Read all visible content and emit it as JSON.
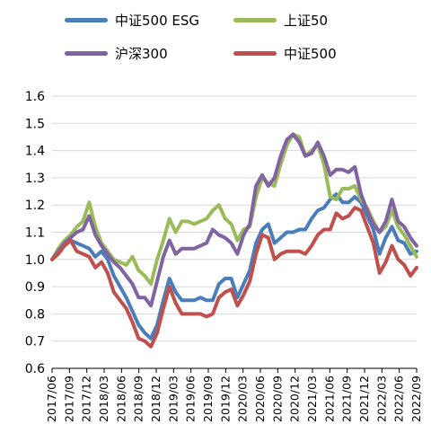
{
  "chart_data": {
    "type": "line",
    "title": "",
    "xlabel": "",
    "ylabel": "",
    "ylim": [
      0.6,
      1.6
    ],
    "yticks": [
      "0.6",
      "0.7",
      "0.8",
      "0.9",
      "1.0",
      "1.1",
      "1.2",
      "1.3",
      "1.4",
      "1.5",
      "1.6"
    ],
    "xticks": [
      "2017/06",
      "2017/09",
      "2017/12",
      "2018/03",
      "2018/06",
      "2018/09",
      "2018/12",
      "2019/03",
      "2019/06",
      "2019/09",
      "2019/12",
      "2020/03",
      "2020/06",
      "2020/09",
      "2020/12",
      "2021/03",
      "2021/06",
      "2021/09",
      "2021/12",
      "2022/03",
      "2022/06",
      "2022/09"
    ],
    "grid": "horizontal",
    "legend_position": "top",
    "series": [
      {
        "name": "中证500 ESG",
        "color": "#4a7ebb",
        "values": [
          1.0,
          1.03,
          1.06,
          1.07,
          1.06,
          1.05,
          1.04,
          1.01,
          1.03,
          1.0,
          0.94,
          0.9,
          0.86,
          0.81,
          0.76,
          0.73,
          0.71,
          0.76,
          0.85,
          0.93,
          0.88,
          0.85,
          0.85,
          0.85,
          0.86,
          0.85,
          0.85,
          0.91,
          0.93,
          0.93,
          0.86,
          0.91,
          0.96,
          1.06,
          1.11,
          1.13,
          1.06,
          1.08,
          1.1,
          1.1,
          1.11,
          1.11,
          1.15,
          1.18,
          1.19,
          1.22,
          1.24,
          1.21,
          1.21,
          1.23,
          1.21,
          1.16,
          1.11,
          1.02,
          1.08,
          1.12,
          1.07,
          1.06,
          1.02,
          1.03
        ]
      },
      {
        "name": "上证50",
        "color": "#9bbb59",
        "values": [
          1.0,
          1.04,
          1.07,
          1.09,
          1.12,
          1.14,
          1.21,
          1.12,
          1.06,
          1.03,
          1.0,
          0.99,
          0.98,
          1.01,
          0.96,
          0.94,
          0.91,
          1.0,
          1.07,
          1.15,
          1.1,
          1.14,
          1.14,
          1.13,
          1.14,
          1.15,
          1.18,
          1.2,
          1.15,
          1.13,
          1.07,
          1.11,
          1.12,
          1.23,
          1.3,
          1.28,
          1.27,
          1.35,
          1.42,
          1.46,
          1.45,
          1.38,
          1.4,
          1.42,
          1.35,
          1.23,
          1.22,
          1.26,
          1.26,
          1.27,
          1.22,
          1.19,
          1.14,
          1.1,
          1.12,
          1.18,
          1.12,
          1.09,
          1.05,
          1.01
        ]
      },
      {
        "name": "沪深300",
        "color": "#8064a2",
        "values": [
          1.0,
          1.03,
          1.06,
          1.08,
          1.1,
          1.11,
          1.16,
          1.09,
          1.05,
          1.02,
          0.99,
          0.97,
          0.94,
          0.91,
          0.86,
          0.86,
          0.83,
          0.92,
          1.01,
          1.07,
          1.02,
          1.04,
          1.04,
          1.04,
          1.05,
          1.06,
          1.11,
          1.09,
          1.08,
          1.06,
          1.02,
          1.09,
          1.13,
          1.27,
          1.31,
          1.27,
          1.3,
          1.38,
          1.44,
          1.46,
          1.43,
          1.38,
          1.39,
          1.43,
          1.38,
          1.31,
          1.33,
          1.33,
          1.32,
          1.34,
          1.24,
          1.18,
          1.13,
          1.1,
          1.14,
          1.22,
          1.14,
          1.12,
          1.08,
          1.05
        ]
      },
      {
        "name": "中证500",
        "color": "#c0504d",
        "values": [
          1.0,
          1.02,
          1.05,
          1.07,
          1.03,
          1.02,
          1.01,
          0.97,
          0.99,
          0.95,
          0.88,
          0.85,
          0.82,
          0.77,
          0.71,
          0.7,
          0.68,
          0.73,
          0.82,
          0.9,
          0.84,
          0.8,
          0.8,
          0.8,
          0.8,
          0.79,
          0.8,
          0.86,
          0.88,
          0.89,
          0.83,
          0.87,
          0.92,
          1.02,
          1.09,
          1.08,
          1.0,
          1.02,
          1.03,
          1.03,
          1.03,
          1.02,
          1.05,
          1.09,
          1.11,
          1.11,
          1.17,
          1.15,
          1.16,
          1.19,
          1.18,
          1.12,
          1.06,
          0.95,
          0.99,
          1.05,
          1.0,
          0.98,
          0.94,
          0.97
        ]
      }
    ]
  }
}
